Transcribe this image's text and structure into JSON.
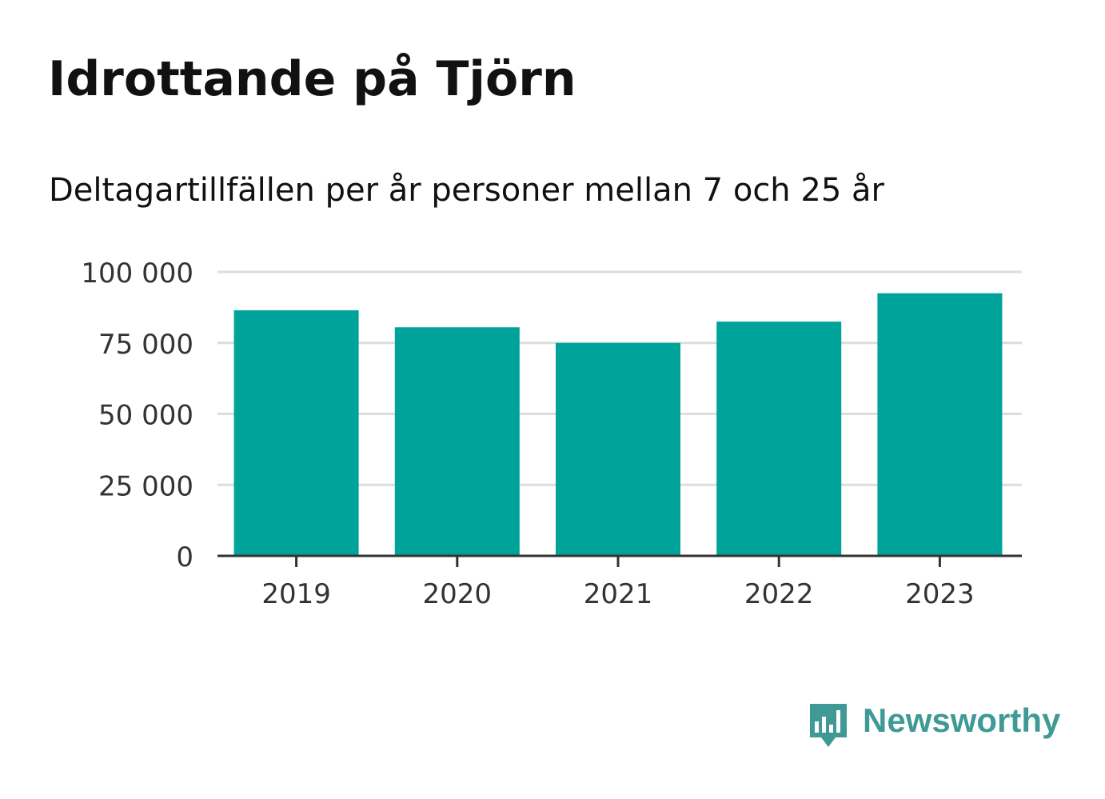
{
  "header": {
    "title": "Idrottande på Tjörn",
    "subtitle": "Deltagartillfällen per år personer mellan 7 och 25 år"
  },
  "chart_data": {
    "type": "bar",
    "categories": [
      "2019",
      "2020",
      "2021",
      "2022",
      "2023"
    ],
    "values": [
      86500,
      80500,
      75000,
      82500,
      92500
    ],
    "ylim": [
      0,
      100000
    ],
    "yticks": [
      0,
      25000,
      50000,
      75000,
      100000
    ],
    "ytick_labels": [
      "0",
      "25 000",
      "50 000",
      "75 000",
      "100 000"
    ],
    "grid": true,
    "legend": "none",
    "colors": {
      "bar": "#00a39a",
      "grid": "#dddddd",
      "axis": "#333333",
      "tick_text": "#333333"
    }
  },
  "branding": {
    "logo_text": "Newsworthy",
    "logo_icon": "newsworthy-chart-bubble-icon",
    "color": "#3f9a95"
  }
}
